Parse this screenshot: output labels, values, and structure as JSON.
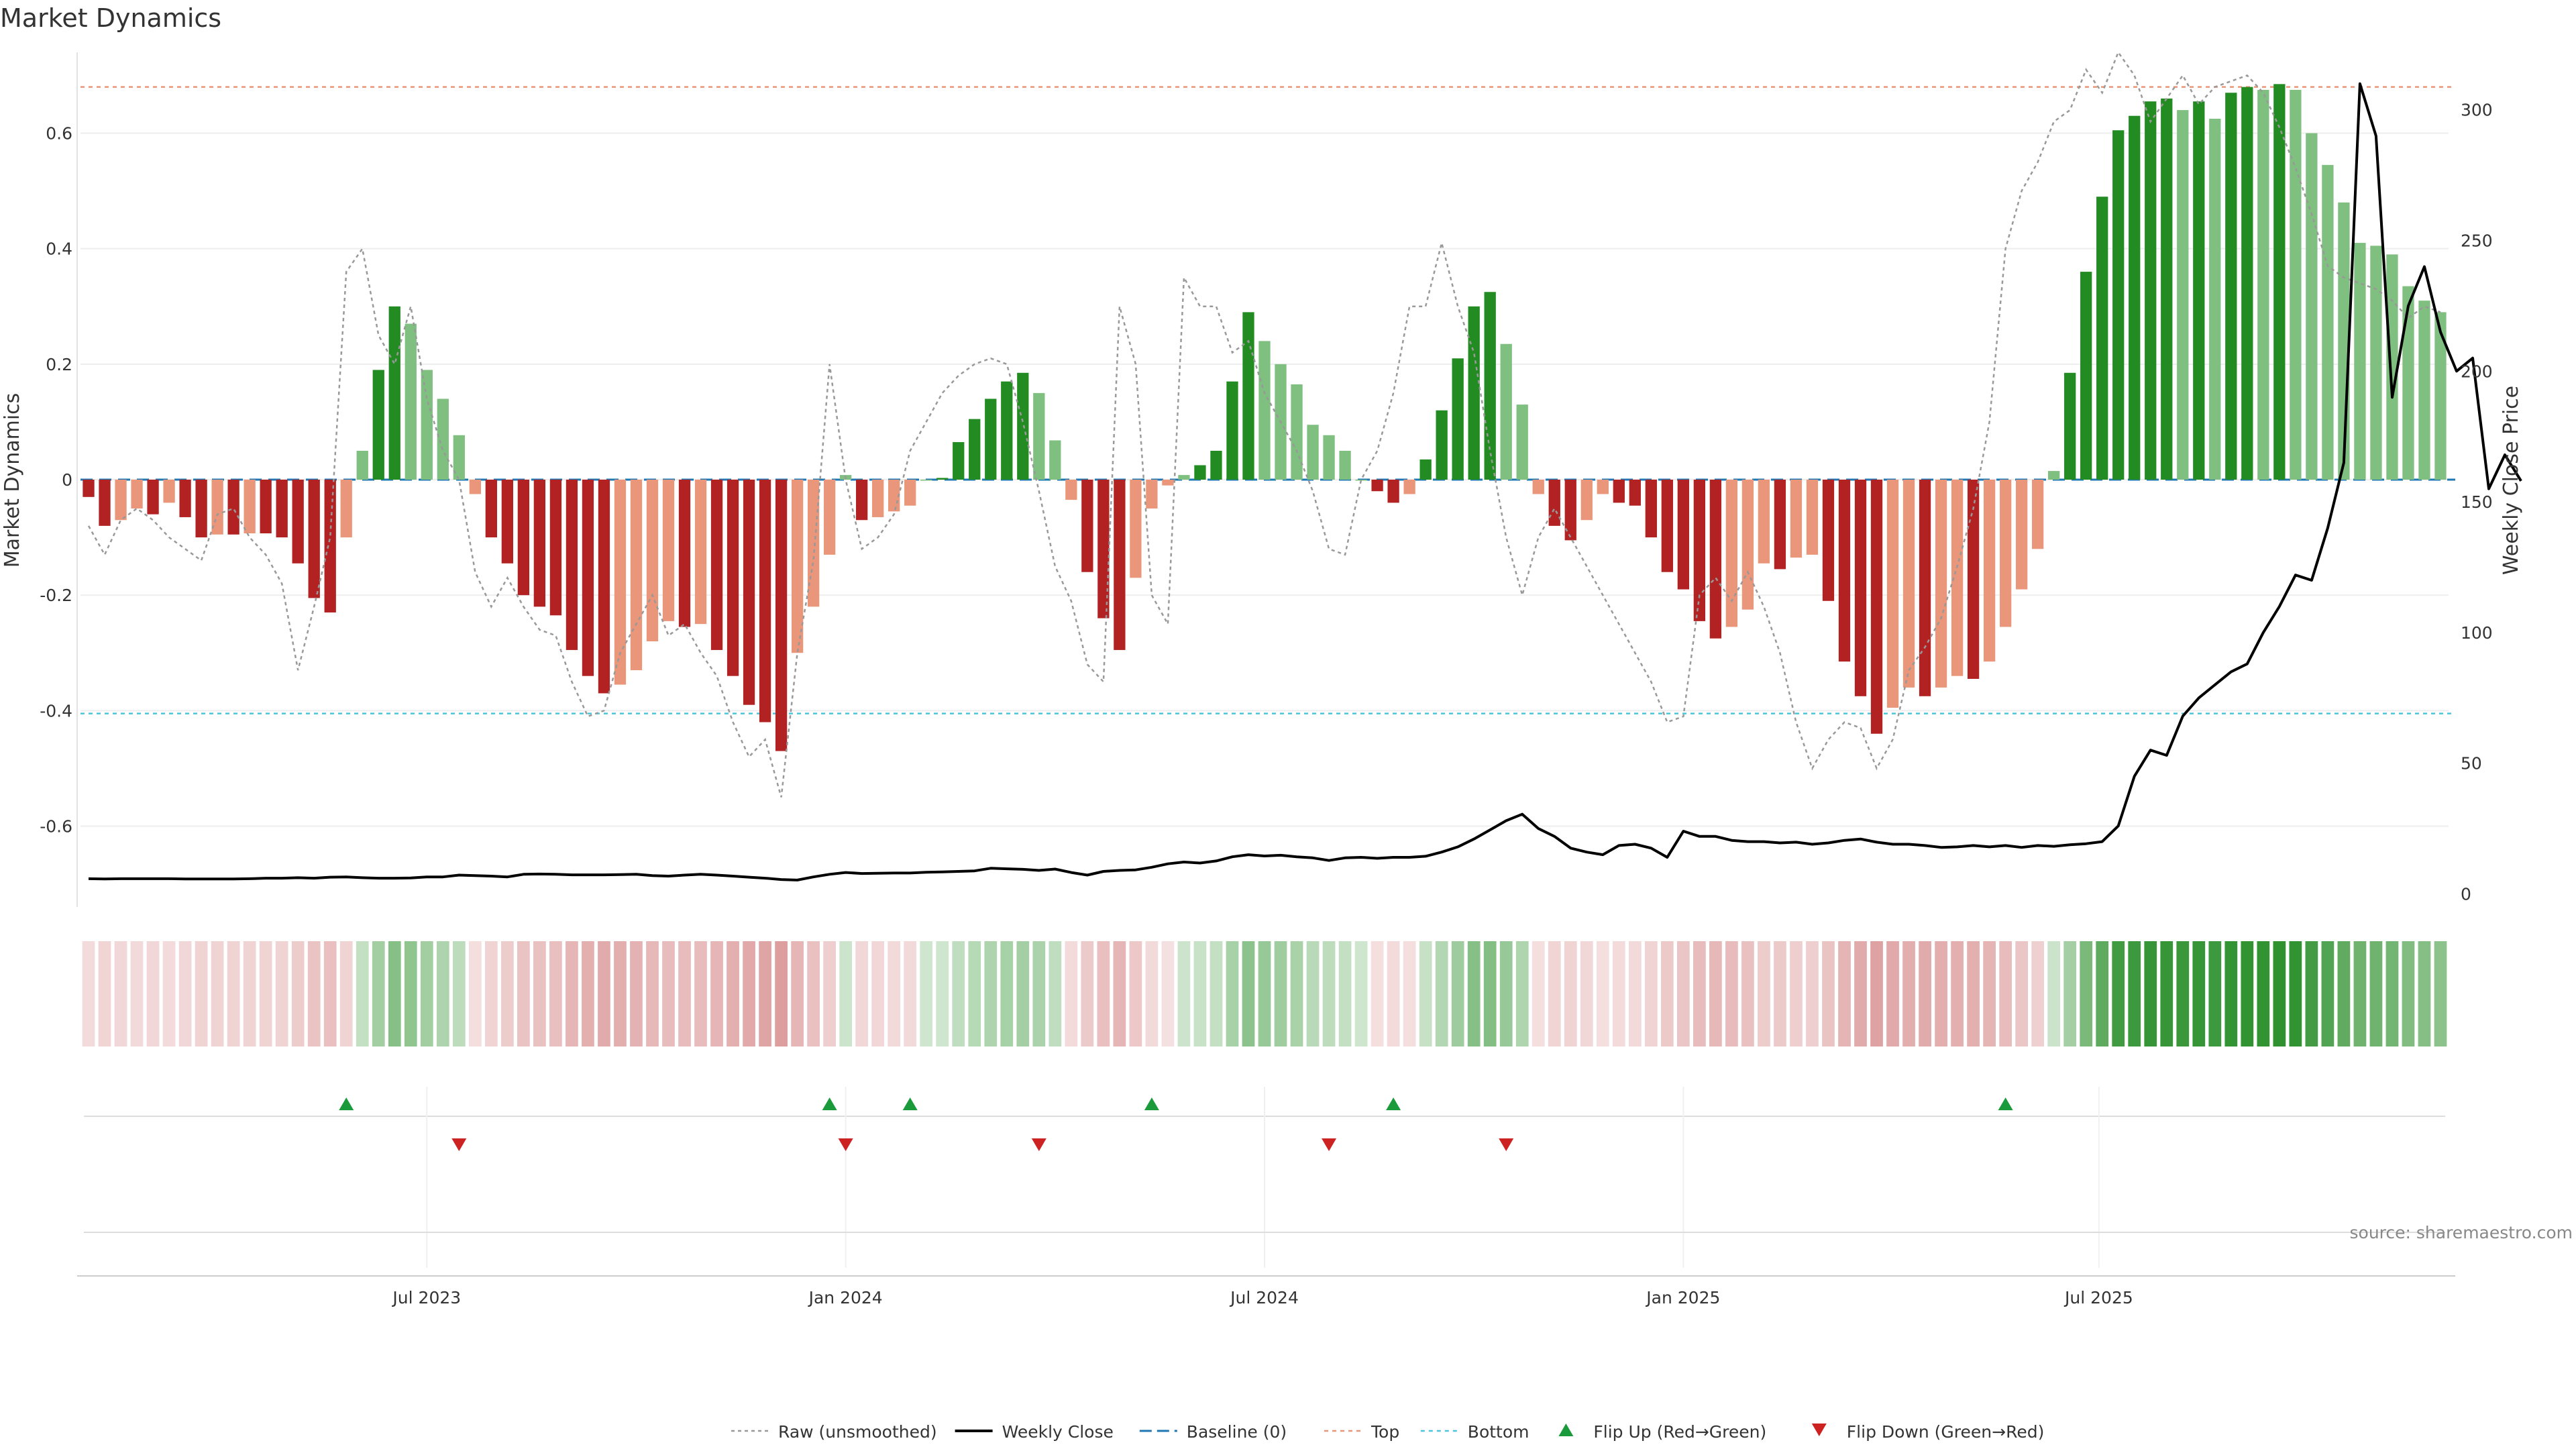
{
  "chart_data": {
    "type": "bar",
    "title": "Market Dynamics",
    "ylabel_left": "Market Dynamics",
    "ylabel_right": "Weekly Close Price",
    "source": "source: sharemaestro.com",
    "y_left": {
      "lim": [
        -0.74,
        0.74
      ],
      "ticks": [
        -0.6,
        -0.4,
        -0.2,
        0,
        0.2,
        0.4,
        0.6
      ],
      "tick_labels": [
        "-0.6",
        "-0.4",
        "-0.2",
        "0",
        "0.2",
        "0.4",
        "0.6"
      ]
    },
    "y_right": {
      "lim": [
        -5,
        322
      ],
      "ticks": [
        0,
        50,
        100,
        150,
        200,
        250,
        300
      ],
      "tick_labels": [
        "0",
        "50",
        "100",
        "150",
        "200",
        "250",
        "300"
      ]
    },
    "x_ticks": [
      "Jul 2023",
      "Jan 2024",
      "Jul 2024",
      "Jan 2025",
      "Jul 2025"
    ],
    "x_tick_index": [
      21.5,
      47.5,
      73.5,
      99.5,
      125.3
    ],
    "thresholds": {
      "baseline": 0,
      "top": 0.68,
      "bottom": -0.405
    },
    "colors": {
      "strong_green": "#228b22",
      "light_green": "#7fbf7f",
      "strong_red": "#b22222",
      "light_red": "#e9967a",
      "close_line": "#000000",
      "raw_line": "#999999",
      "baseline": "#1f77b4",
      "top": "#e9967a",
      "bottom": "#4fc3d9"
    },
    "series": [
      {
        "name": "Market Dynamics",
        "values": [
          -0.03,
          -0.08,
          -0.07,
          -0.05,
          -0.06,
          -0.04,
          -0.065,
          -0.1,
          -0.095,
          -0.095,
          -0.093,
          -0.093,
          -0.1,
          -0.145,
          -0.205,
          -0.23,
          -0.1,
          0.05,
          0.19,
          0.3,
          0.27,
          0.19,
          0.14,
          0.077,
          -0.025,
          -0.1,
          -0.145,
          -0.2,
          -0.22,
          -0.235,
          -0.295,
          -0.34,
          -0.37,
          -0.355,
          -0.33,
          -0.28,
          -0.245,
          -0.255,
          -0.25,
          -0.295,
          -0.34,
          -0.39,
          -0.42,
          -0.47,
          -0.3,
          -0.22,
          -0.13,
          0.008,
          -0.07,
          -0.065,
          -0.055,
          -0.045,
          0,
          0.003,
          0.065,
          0.105,
          0.14,
          0.17,
          0.185,
          0.15,
          0.068,
          -0.035,
          -0.16,
          -0.24,
          -0.295,
          -0.17,
          -0.05,
          -0.01,
          0.008,
          0.025,
          0.05,
          0.17,
          0.29,
          0.24,
          0.2,
          0.165,
          0.095,
          0.077,
          0.05,
          0,
          -0.02,
          -0.04,
          -0.025,
          0.035,
          0.12,
          0.21,
          0.3,
          0.325,
          0.235,
          0.13,
          -0.025,
          -0.08,
          -0.105,
          -0.07,
          -0.025,
          -0.04,
          -0.045,
          -0.1,
          -0.16,
          -0.19,
          -0.245,
          -0.275,
          -0.255,
          -0.225,
          -0.145,
          -0.155,
          -0.135,
          -0.13,
          -0.21,
          -0.315,
          -0.375,
          -0.44,
          -0.395,
          -0.36,
          -0.375,
          -0.36,
          -0.34,
          -0.345,
          -0.315,
          -0.255,
          -0.19,
          -0.12,
          0.015,
          0.185,
          0.36,
          0.49,
          0.605,
          0.63,
          0.655,
          0.66,
          0.64,
          0.655,
          0.625,
          0.67,
          0.68,
          0.675,
          0.685,
          0.675,
          0.6,
          0.545,
          0.48,
          0.41,
          0.405,
          0.39,
          0.335,
          0.31,
          0.29
        ]
      },
      {
        "name": "Raw (unsmoothed)",
        "values": [
          -0.08,
          -0.13,
          -0.07,
          -0.05,
          -0.07,
          -0.1,
          -0.12,
          -0.14,
          -0.06,
          -0.05,
          -0.1,
          -0.13,
          -0.18,
          -0.33,
          -0.22,
          -0.1,
          0.36,
          0.4,
          0.25,
          0.2,
          0.3,
          0.14,
          0.05,
          0,
          -0.16,
          -0.22,
          -0.17,
          -0.22,
          -0.26,
          -0.27,
          -0.35,
          -0.41,
          -0.4,
          -0.3,
          -0.25,
          -0.2,
          -0.27,
          -0.25,
          -0.3,
          -0.34,
          -0.42,
          -0.48,
          -0.45,
          -0.55,
          -0.3,
          -0.14,
          0.2,
          0,
          -0.12,
          -0.1,
          -0.06,
          0.05,
          0.1,
          0.15,
          0.18,
          0.2,
          0.21,
          0.2,
          0.1,
          -0.02,
          -0.15,
          -0.21,
          -0.32,
          -0.35,
          0.3,
          0.2,
          -0.2,
          -0.25,
          0.35,
          0.3,
          0.3,
          0.22,
          0.24,
          0.15,
          0.1,
          0.05,
          -0.02,
          -0.12,
          -0.13,
          0,
          0.05,
          0.15,
          0.3,
          0.3,
          0.41,
          0.3,
          0.22,
          0.05,
          -0.1,
          -0.2,
          -0.1,
          -0.05,
          -0.1,
          -0.15,
          -0.2,
          -0.25,
          -0.3,
          -0.35,
          -0.42,
          -0.41,
          -0.2,
          -0.17,
          -0.21,
          -0.16,
          -0.22,
          -0.3,
          -0.42,
          -0.5,
          -0.45,
          -0.42,
          -0.43,
          -0.5,
          -0.45,
          -0.33,
          -0.29,
          -0.24,
          -0.15,
          -0.05,
          0.1,
          0.4,
          0.5,
          0.55,
          0.62,
          0.64,
          0.71,
          0.67,
          0.74,
          0.7,
          0.62,
          0.66,
          0.7,
          0.65,
          0.68,
          0.69,
          0.7,
          0.67,
          0.61,
          0.54,
          0.46,
          0.37,
          0.35,
          0.34,
          0.33,
          0.31,
          0.28,
          0.3,
          0.29
        ]
      },
      {
        "name": "Weekly Close",
        "values": [
          5.8,
          5.7,
          5.8,
          5.8,
          5.8,
          5.8,
          5.7,
          5.7,
          5.7,
          5.7,
          5.8,
          6.0,
          6.0,
          6.2,
          6.0,
          6.4,
          6.5,
          6.2,
          6.0,
          6.0,
          6.1,
          6.5,
          6.5,
          7.2,
          7.0,
          6.8,
          6.5,
          7.5,
          7.6,
          7.5,
          7.3,
          7.3,
          7.3,
          7.4,
          7.5,
          7.0,
          6.8,
          7.2,
          7.5,
          7.2,
          6.8,
          6.4,
          6.0,
          5.5,
          5.3,
          6.5,
          7.5,
          8.2,
          7.8,
          7.9,
          8.0,
          8.0,
          8.3,
          8.4,
          8.6,
          8.8,
          9.8,
          9.6,
          9.4,
          9.0,
          9.5,
          8.2,
          7.2,
          8.6,
          9.0,
          9.2,
          10.2,
          11.5,
          12.2,
          11.8,
          12.6,
          14.2,
          15.0,
          14.5,
          14.8,
          14.2,
          13.8,
          12.8,
          13.8,
          14.0,
          13.6,
          14.0,
          14.0,
          14.4,
          16.0,
          18.0,
          21.0,
          24.5,
          28.0,
          30.5,
          25.0,
          22.0,
          17.5,
          16.0,
          15.0,
          18.5,
          19.0,
          17.5,
          14.0,
          24.0,
          22.0,
          22.0,
          20.5,
          20.0,
          20.0,
          19.5,
          19.8,
          19.0,
          19.5,
          20.5,
          21.0,
          19.8,
          19.0,
          19.0,
          18.5,
          17.8,
          18.0,
          18.5,
          18.0,
          18.5,
          17.8,
          18.5,
          18.2,
          18.8,
          19.2,
          20.0,
          26.0,
          45.0,
          55.0,
          53.0,
          68.0,
          75.0,
          80.0,
          85.0,
          88.0,
          100.0,
          110.0,
          122.0,
          120.0,
          140.0,
          165.0,
          310.0,
          290.0,
          190.0,
          225.0,
          240.0,
          215.0,
          200.0,
          205.0,
          155.0,
          168.0,
          158.0
        ]
      }
    ],
    "legend": [
      "Raw (unsmoothed)",
      "Weekly Close",
      "Baseline (0)",
      "Top",
      "Bottom",
      "Flip Up (Red→Green)",
      "Flip Down (Green→Red)"
    ],
    "flip_up_index": [
      16,
      46,
      51,
      66,
      81,
      119
    ],
    "flip_down_index": [
      23,
      47,
      59,
      77,
      88
    ]
  }
}
